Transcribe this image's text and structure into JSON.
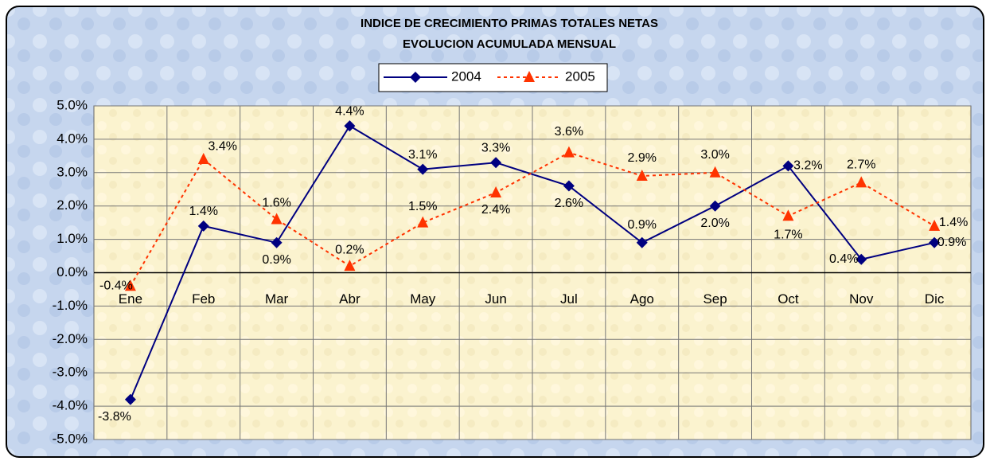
{
  "chart_data": {
    "type": "line",
    "title": "INDICE DE CRECIMIENTO  PRIMAS TOTALES NETAS",
    "subtitle": "EVOLUCION  ACUMULADA MENSUAL",
    "categories": [
      "Ene",
      "Feb",
      "Mar",
      "Abr",
      "May",
      "Jun",
      "Jul",
      "Ago",
      "Sep",
      "Oct",
      "Nov",
      "Dic"
    ],
    "series": [
      {
        "name": "2004",
        "color": "#000080",
        "marker": "diamond",
        "dash": false,
        "values": [
          -3.8,
          1.4,
          0.9,
          4.4,
          3.1,
          3.3,
          2.6,
          0.9,
          2.0,
          3.2,
          0.4,
          0.9
        ],
        "value_labels": [
          "-3.8%",
          "1.4%",
          "0.9%",
          "4.4%",
          "3.1%",
          "3.3%",
          "2.6%",
          "0.9%",
          "2.0%",
          "3.2%",
          "0.4%",
          "0.9%"
        ]
      },
      {
        "name": "2005",
        "color": "#FF3300",
        "marker": "triangle",
        "dash": true,
        "values": [
          -0.4,
          3.4,
          1.6,
          0.2,
          1.5,
          2.4,
          3.6,
          2.9,
          3.0,
          1.7,
          2.7,
          1.4
        ],
        "value_labels": [
          "-0.4%",
          "3.4%",
          "1.6%",
          "0.2%",
          "1.5%",
          "2.4%",
          "3.6%",
          "2.9%",
          "3.0%",
          "1.7%",
          "2.7%",
          "1.4%"
        ]
      }
    ],
    "ylim": [
      -5,
      5
    ],
    "yticks": [
      {
        "value": -5,
        "label": "-5.0%"
      },
      {
        "value": -4,
        "label": "-4.0%"
      },
      {
        "value": -3,
        "label": "-3.0%"
      },
      {
        "value": -2,
        "label": "-2.0%"
      },
      {
        "value": -1,
        "label": "-1.0%"
      },
      {
        "value": 0,
        "label": "0.0%"
      },
      {
        "value": 1,
        "label": "1.0%"
      },
      {
        "value": 2,
        "label": "2.0%"
      },
      {
        "value": 3,
        "label": "3.0%"
      },
      {
        "value": 4,
        "label": "4.0%"
      },
      {
        "value": 5,
        "label": "5.0%"
      }
    ],
    "grid": true,
    "legend": "top"
  }
}
